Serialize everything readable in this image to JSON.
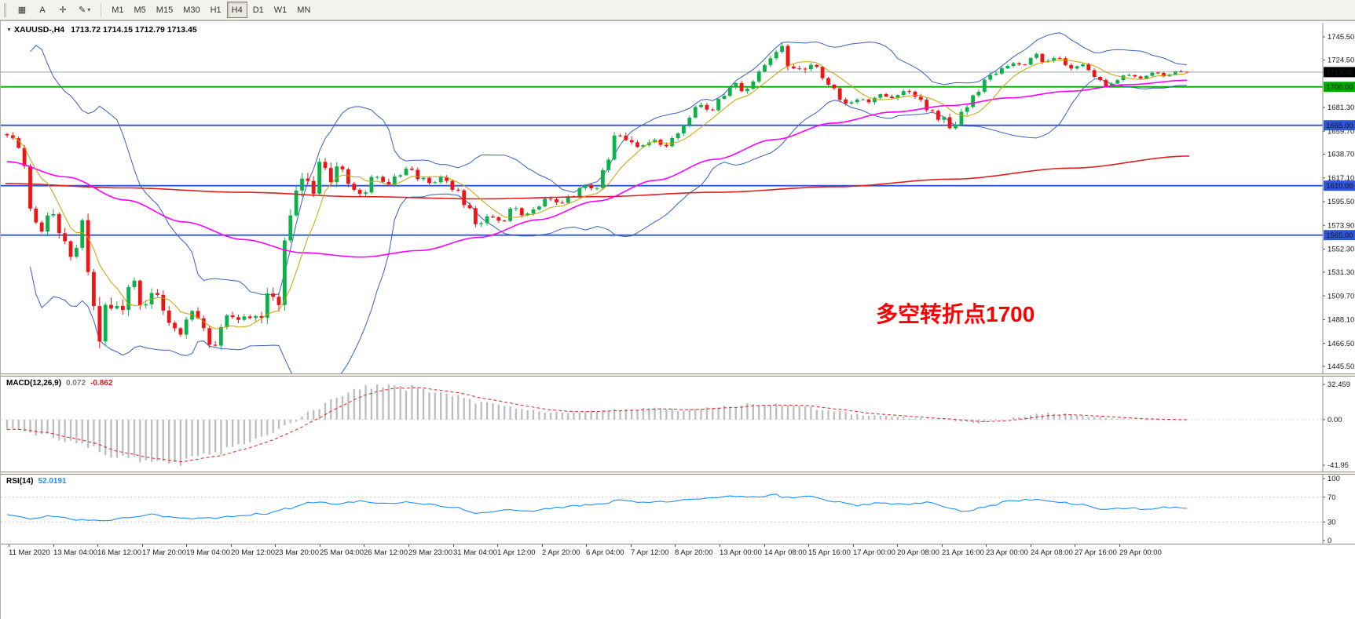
{
  "toolbar": {
    "window_icon": "▦",
    "text_icon": "A",
    "crosshair_icon": "✛",
    "draw_icon": "✎",
    "dropdown_icon": "▾",
    "timeframes": [
      {
        "label": "M1",
        "active": false
      },
      {
        "label": "M5",
        "active": false
      },
      {
        "label": "M15",
        "active": false
      },
      {
        "label": "M30",
        "active": false
      },
      {
        "label": "H1",
        "active": false
      },
      {
        "label": "H4",
        "active": true
      },
      {
        "label": "D1",
        "active": false
      },
      {
        "label": "W1",
        "active": false
      },
      {
        "label": "MN",
        "active": false
      }
    ]
  },
  "chart": {
    "collapse_glyph": "▼",
    "symbol_period": "XAUUSD-,H4",
    "ohlc": "1713.72 1714.15 1712.79 1713.45",
    "annotation": {
      "text": "多空转折点1700",
      "color": "#FF0000"
    }
  },
  "indicators": {
    "macd": {
      "name": "MACD(12,26,9)",
      "value": "0.072",
      "signal": "-0.862"
    },
    "rsi": {
      "name": "RSI(14)",
      "value": "52.0191"
    }
  },
  "chart_data": {
    "type": "candlestick",
    "symbol": "XAUUSD-",
    "timeframe": "H4",
    "quote": {
      "open": 1713.72,
      "high": 1714.15,
      "low": 1712.79,
      "close": 1713.45
    },
    "price_range": [
      1445.5,
      1745.5
    ],
    "price_axis": [
      "1745.50",
      "1724.50",
      "1681.30",
      "1659.70",
      "1638.70",
      "1617.10",
      "1595.50",
      "1573.90",
      "1552.30",
      "1531.30",
      "1509.70",
      "1488.10",
      "1466.50",
      "1445.50"
    ],
    "levels": [
      {
        "price": 1713.45,
        "label": "1713.45",
        "line": "#9aa4a4",
        "badge": "#000000",
        "type": "current"
      },
      {
        "price": 1700.0,
        "label": "1700.00",
        "line": "#00a800",
        "badge": "#00a800",
        "type": "level"
      },
      {
        "price": 1665.0,
        "label": "1665.00",
        "line": "#2e54d8",
        "badge": "#2e54d8",
        "type": "level"
      },
      {
        "price": 1610.0,
        "label": "1610.00",
        "line": "#2e54d8",
        "badge": "#2e54d8",
        "type": "level"
      },
      {
        "price": 1565.0,
        "label": "1565.00",
        "line": "#2e54d8",
        "badge": "#2e54d8",
        "type": "level"
      }
    ],
    "candle_count": 205,
    "close_path": [
      [
        0,
        1657
      ],
      [
        0.012,
        1640
      ],
      [
        0.02,
        1588
      ],
      [
        0.028,
        1566
      ],
      [
        0.036,
        1590
      ],
      [
        0.046,
        1560
      ],
      [
        0.056,
        1546
      ],
      [
        0.063,
        1576
      ],
      [
        0.07,
        1526
      ],
      [
        0.078,
        1462
      ],
      [
        0.086,
        1505
      ],
      [
        0.096,
        1494
      ],
      [
        0.106,
        1522
      ],
      [
        0.116,
        1500
      ],
      [
        0.126,
        1512
      ],
      [
        0.136,
        1487
      ],
      [
        0.146,
        1472
      ],
      [
        0.156,
        1498
      ],
      [
        0.166,
        1478
      ],
      [
        0.176,
        1462
      ],
      [
        0.186,
        1492
      ],
      [
        0.196,
        1486
      ],
      [
        0.206,
        1492
      ],
      [
        0.216,
        1486
      ],
      [
        0.223,
        1518
      ],
      [
        0.229,
        1498
      ],
      [
        0.236,
        1556
      ],
      [
        0.243,
        1600
      ],
      [
        0.251,
        1622
      ],
      [
        0.259,
        1598
      ],
      [
        0.266,
        1634
      ],
      [
        0.273,
        1612
      ],
      [
        0.281,
        1628
      ],
      [
        0.291,
        1612
      ],
      [
        0.301,
        1600
      ],
      [
        0.311,
        1622
      ],
      [
        0.321,
        1612
      ],
      [
        0.331,
        1618
      ],
      [
        0.341,
        1625
      ],
      [
        0.351,
        1616
      ],
      [
        0.361,
        1611
      ],
      [
        0.371,
        1618
      ],
      [
        0.381,
        1605
      ],
      [
        0.391,
        1588
      ],
      [
        0.399,
        1571
      ],
      [
        0.409,
        1580
      ],
      [
        0.419,
        1576
      ],
      [
        0.429,
        1590
      ],
      [
        0.439,
        1582
      ],
      [
        0.449,
        1592
      ],
      [
        0.459,
        1600
      ],
      [
        0.469,
        1592
      ],
      [
        0.479,
        1601
      ],
      [
        0.489,
        1612
      ],
      [
        0.499,
        1608
      ],
      [
        0.509,
        1632
      ],
      [
        0.516,
        1655
      ],
      [
        0.526,
        1648
      ],
      [
        0.536,
        1642
      ],
      [
        0.546,
        1652
      ],
      [
        0.556,
        1645
      ],
      [
        0.566,
        1656
      ],
      [
        0.576,
        1668
      ],
      [
        0.586,
        1682
      ],
      [
        0.596,
        1676
      ],
      [
        0.606,
        1692
      ],
      [
        0.616,
        1703
      ],
      [
        0.626,
        1696
      ],
      [
        0.636,
        1712
      ],
      [
        0.646,
        1728
      ],
      [
        0.656,
        1738
      ],
      [
        0.663,
        1720
      ],
      [
        0.671,
        1713
      ],
      [
        0.681,
        1722
      ],
      [
        0.691,
        1710
      ],
      [
        0.701,
        1698
      ],
      [
        0.711,
        1683
      ],
      [
        0.721,
        1690
      ],
      [
        0.731,
        1685
      ],
      [
        0.741,
        1694
      ],
      [
        0.751,
        1689
      ],
      [
        0.761,
        1698
      ],
      [
        0.771,
        1690
      ],
      [
        0.781,
        1680
      ],
      [
        0.791,
        1672
      ],
      [
        0.801,
        1663
      ],
      [
        0.811,
        1681
      ],
      [
        0.821,
        1696
      ],
      [
        0.831,
        1708
      ],
      [
        0.841,
        1715
      ],
      [
        0.851,
        1722
      ],
      [
        0.861,
        1718
      ],
      [
        0.871,
        1730
      ],
      [
        0.881,
        1722
      ],
      [
        0.891,
        1727
      ],
      [
        0.901,
        1716
      ],
      [
        0.911,
        1720
      ],
      [
        0.921,
        1710
      ],
      [
        0.931,
        1701
      ],
      [
        0.941,
        1706
      ],
      [
        0.951,
        1712
      ],
      [
        0.961,
        1708
      ],
      [
        0.971,
        1714
      ],
      [
        0.981,
        1710
      ],
      [
        0.991,
        1715
      ],
      [
        1,
        1713.45
      ]
    ],
    "volatility": [
      [
        0,
        7
      ],
      [
        0.02,
        13
      ],
      [
        0.05,
        14
      ],
      [
        0.08,
        24
      ],
      [
        0.12,
        13
      ],
      [
        0.16,
        11
      ],
      [
        0.2,
        10
      ],
      [
        0.23,
        18
      ],
      [
        0.26,
        15
      ],
      [
        0.3,
        9
      ],
      [
        0.35,
        7
      ],
      [
        0.4,
        9
      ],
      [
        0.45,
        6
      ],
      [
        0.5,
        7
      ],
      [
        0.52,
        10
      ],
      [
        0.58,
        7
      ],
      [
        0.63,
        8
      ],
      [
        0.66,
        11
      ],
      [
        0.7,
        7
      ],
      [
        0.75,
        6
      ],
      [
        0.8,
        9
      ],
      [
        0.85,
        6
      ],
      [
        0.9,
        6
      ],
      [
        0.95,
        4
      ],
      [
        1,
        2.5
      ]
    ],
    "ma_magenta": [
      [
        0,
        1632
      ],
      [
        0.05,
        1618
      ],
      [
        0.1,
        1597
      ],
      [
        0.15,
        1577
      ],
      [
        0.2,
        1561
      ],
      [
        0.25,
        1549
      ],
      [
        0.3,
        1545
      ],
      [
        0.35,
        1551
      ],
      [
        0.4,
        1563
      ],
      [
        0.45,
        1579
      ],
      [
        0.5,
        1596
      ],
      [
        0.55,
        1615
      ],
      [
        0.6,
        1634
      ],
      [
        0.65,
        1652
      ],
      [
        0.7,
        1667
      ],
      [
        0.75,
        1677
      ],
      [
        0.8,
        1683
      ],
      [
        0.85,
        1690
      ],
      [
        0.9,
        1696
      ],
      [
        0.95,
        1702
      ],
      [
        1,
        1706
      ]
    ],
    "ma_red": [
      [
        0,
        1612
      ],
      [
        0.1,
        1608
      ],
      [
        0.2,
        1604
      ],
      [
        0.3,
        1600
      ],
      [
        0.4,
        1598
      ],
      [
        0.5,
        1600
      ],
      [
        0.6,
        1604
      ],
      [
        0.7,
        1609
      ],
      [
        0.8,
        1616
      ],
      [
        0.9,
        1626
      ],
      [
        1,
        1637
      ]
    ],
    "macd": {
      "axis": [
        "32.459",
        "0.00",
        "-41.95"
      ],
      "current": 0.072,
      "signal_current": -0.862,
      "path": [
        [
          0,
          -8
        ],
        [
          0.03,
          -14
        ],
        [
          0.06,
          -22
        ],
        [
          0.09,
          -32
        ],
        [
          0.12,
          -39
        ],
        [
          0.14,
          -40
        ],
        [
          0.17,
          -33
        ],
        [
          0.2,
          -24
        ],
        [
          0.22,
          -14
        ],
        [
          0.24,
          -4
        ],
        [
          0.26,
          9
        ],
        [
          0.28,
          21
        ],
        [
          0.3,
          29
        ],
        [
          0.32,
          32.459
        ],
        [
          0.34,
          30
        ],
        [
          0.36,
          26
        ],
        [
          0.38,
          21
        ],
        [
          0.4,
          16
        ],
        [
          0.43,
          11
        ],
        [
          0.46,
          7
        ],
        [
          0.49,
          7
        ],
        [
          0.52,
          9
        ],
        [
          0.55,
          10
        ],
        [
          0.58,
          9
        ],
        [
          0.61,
          12
        ],
        [
          0.64,
          15
        ],
        [
          0.67,
          13
        ],
        [
          0.7,
          8
        ],
        [
          0.73,
          4
        ],
        [
          0.76,
          2
        ],
        [
          0.79,
          0
        ],
        [
          0.82,
          -3
        ],
        [
          0.84,
          -1
        ],
        [
          0.86,
          3
        ],
        [
          0.88,
          6
        ],
        [
          0.9,
          5
        ],
        [
          0.92,
          3
        ],
        [
          0.94,
          1
        ],
        [
          0.96,
          0
        ],
        [
          0.98,
          0.3
        ],
        [
          1,
          0.072
        ]
      ]
    },
    "rsi": {
      "axis": [
        "100",
        "70",
        "30",
        "0"
      ],
      "levels": [
        70,
        30
      ],
      "current": 52.0191,
      "path": [
        [
          0,
          42
        ],
        [
          0.02,
          35
        ],
        [
          0.04,
          40
        ],
        [
          0.06,
          34
        ],
        [
          0.08,
          31
        ],
        [
          0.1,
          36
        ],
        [
          0.12,
          42
        ],
        [
          0.14,
          38
        ],
        [
          0.16,
          35
        ],
        [
          0.18,
          37
        ],
        [
          0.2,
          41
        ],
        [
          0.22,
          44
        ],
        [
          0.24,
          52
        ],
        [
          0.26,
          62
        ],
        [
          0.28,
          59
        ],
        [
          0.3,
          64
        ],
        [
          0.32,
          60
        ],
        [
          0.34,
          62
        ],
        [
          0.36,
          58
        ],
        [
          0.38,
          53
        ],
        [
          0.4,
          44
        ],
        [
          0.42,
          49
        ],
        [
          0.44,
          47
        ],
        [
          0.46,
          52
        ],
        [
          0.48,
          56
        ],
        [
          0.5,
          58
        ],
        [
          0.52,
          65
        ],
        [
          0.54,
          61
        ],
        [
          0.56,
          63
        ],
        [
          0.58,
          67
        ],
        [
          0.6,
          69
        ],
        [
          0.62,
          72
        ],
        [
          0.64,
          70
        ],
        [
          0.65,
          74
        ],
        [
          0.66,
          69
        ],
        [
          0.68,
          71
        ],
        [
          0.7,
          63
        ],
        [
          0.72,
          57
        ],
        [
          0.74,
          60
        ],
        [
          0.76,
          58
        ],
        [
          0.78,
          61
        ],
        [
          0.8,
          53
        ],
        [
          0.81,
          46
        ],
        [
          0.83,
          55
        ],
        [
          0.85,
          63
        ],
        [
          0.87,
          66
        ],
        [
          0.89,
          62
        ],
        [
          0.91,
          58
        ],
        [
          0.93,
          49
        ],
        [
          0.95,
          53
        ],
        [
          0.97,
          50
        ],
        [
          0.98,
          54
        ],
        [
          1,
          52.0191
        ]
      ]
    },
    "time_labels": [
      "11 Mar 2020",
      "13 Mar 04:00",
      "16 Mar 12:00",
      "17 Mar 20:00",
      "19 Mar 04:00",
      "20 Mar 12:00",
      "23 Mar 20:00",
      "25 Mar 04:00",
      "26 Mar 12:00",
      "29 Mar 23:00",
      "31 Mar 04:00",
      "1 Apr 12:00",
      "2 Apr 20:00",
      "6 Apr 04:00",
      "7 Apr 12:00",
      "8 Apr 20:00",
      "13 Apr 00:00",
      "14 Apr 08:00",
      "15 Apr 16:00",
      "17 Apr 00:00",
      "20 Apr 08:00",
      "21 Apr 16:00",
      "23 Apr 00:00",
      "24 Apr 08:00",
      "27 Apr 16:00",
      "29 Apr 00:00"
    ],
    "colors": {
      "up": "#0db14b",
      "down": "#ef1515",
      "bollinger": "#3a5fc0",
      "ma_fast": "#c8a400",
      "ma_mid": "#ff00ff",
      "ma_slow": "#e02020",
      "macd_hist": "#bdbdbd",
      "macd_signal": "#e03535",
      "rsi": "#1e90ff",
      "axis_line": "#8f8d84"
    }
  }
}
